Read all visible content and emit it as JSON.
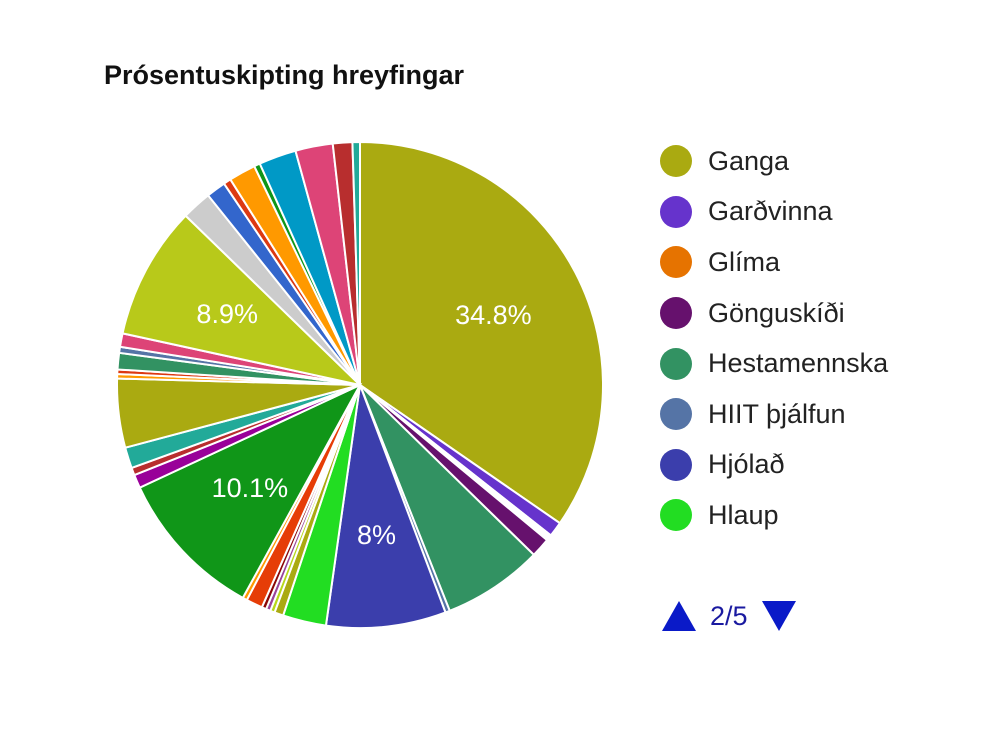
{
  "chart_data": {
    "type": "pie",
    "title": "Prósentuskipting hreyfingar",
    "start_angle_deg": 0,
    "slices": [
      {
        "value": 34.8,
        "color": "#aaaa11",
        "label": "34.8%"
      },
      {
        "value": 1.0,
        "color": "#6633cc"
      },
      {
        "value": 0.4,
        "color": "#ffffff"
      },
      {
        "value": 1.3,
        "color": "#66116d"
      },
      {
        "value": 6.7,
        "color": "#329262"
      },
      {
        "value": 0.3,
        "color": "#5574a6"
      },
      {
        "value": 8.0,
        "color": "#3b3eac",
        "label": "8%"
      },
      {
        "value": 2.9,
        "color": "#22dd22"
      },
      {
        "value": 0.6,
        "color": "#aaaa11"
      },
      {
        "value": 0.3,
        "color": "#b8d81a"
      },
      {
        "value": 0.3,
        "color": "#994499"
      },
      {
        "value": 0.3,
        "color": "#8b0707"
      },
      {
        "value": 1.1,
        "color": "#e63d07"
      },
      {
        "value": 0.3,
        "color": "#ff9900"
      },
      {
        "value": 10.1,
        "color": "#109618",
        "label": "10.1%"
      },
      {
        "value": 0.9,
        "color": "#990099"
      },
      {
        "value": 0.5,
        "color": "#b82e2e"
      },
      {
        "value": 1.4,
        "color": "#22aa99"
      },
      {
        "value": 4.6,
        "color": "#aaaa11"
      },
      {
        "value": 0.3,
        "color": "#ff9900"
      },
      {
        "value": 0.3,
        "color": "#dc3912"
      },
      {
        "value": 1.1,
        "color": "#329262"
      },
      {
        "value": 0.4,
        "color": "#5574a6"
      },
      {
        "value": 0.9,
        "color": "#dd4477"
      },
      {
        "value": 8.9,
        "color": "#b8c91a",
        "label": "8.9%"
      },
      {
        "value": 2.0,
        "color": "#cccccc"
      },
      {
        "value": 1.3,
        "color": "#3366cc"
      },
      {
        "value": 0.5,
        "color": "#dc3912"
      },
      {
        "value": 1.8,
        "color": "#ff9900"
      },
      {
        "value": 0.4,
        "color": "#109618"
      },
      {
        "value": 2.5,
        "color": "#0099c6"
      },
      {
        "value": 2.5,
        "color": "#dd4477"
      },
      {
        "value": 1.3,
        "color": "#b82e2e"
      },
      {
        "value": 0.5,
        "color": "#22aa99"
      }
    ],
    "legend": [
      {
        "name": "Ganga",
        "color": "#aaaa11"
      },
      {
        "name": "Garðvinna",
        "color": "#6633cc"
      },
      {
        "name": "Glíma",
        "color": "#e67300"
      },
      {
        "name": "Gönguskíði",
        "color": "#66116d"
      },
      {
        "name": "Hestamennska",
        "color": "#329262"
      },
      {
        "name": "HIIT þjálfun",
        "color": "#5574a6"
      },
      {
        "name": "Hjólað",
        "color": "#3b3eac"
      },
      {
        "name": "Hlaup",
        "color": "#22dd22"
      }
    ],
    "legend_position": "right",
    "pager": {
      "current": 2,
      "total": 5,
      "text": "2/5"
    }
  }
}
